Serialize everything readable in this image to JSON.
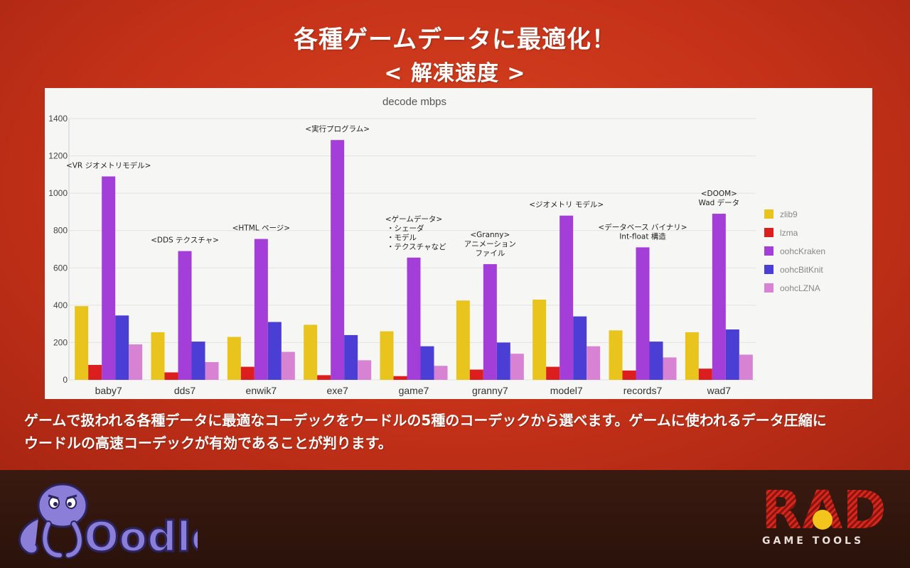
{
  "slide": {
    "title": "各種ゲームデータに最適化！",
    "subtitle": "< 解凍速度 >",
    "caption_line1": "ゲームで扱われる各種データに最適なコーデックをウードルの5種のコーデックから選べます。ゲームに使われるデータ圧縮に",
    "caption_line2": "ウードルの高速コーデックが有効であることが判ります。",
    "brand_left": "Oodle",
    "brand_right": "RAD",
    "brand_right_sub": "GAME TOOLS"
  },
  "colors": {
    "zlib9": "#e8c41c",
    "lzma": "#dc1e1e",
    "oohcKraken": "#a43ed8",
    "oohcBitKnit": "#4a3ed4",
    "oohcLZNA": "#d882d4"
  },
  "chart_data": {
    "type": "bar",
    "title": "decode mbps",
    "xlabel": "",
    "ylabel": "",
    "ylim": [
      0,
      1400
    ],
    "yticks": [
      0,
      200,
      400,
      600,
      800,
      1000,
      1200,
      1400
    ],
    "grid": true,
    "legend": "right",
    "categories": [
      "baby7",
      "dds7",
      "enwik7",
      "exe7",
      "game7",
      "granny7",
      "model7",
      "records7",
      "wad7"
    ],
    "series": [
      {
        "name": "zlib9",
        "values": [
          395,
          255,
          230,
          295,
          260,
          425,
          430,
          265,
          255
        ]
      },
      {
        "name": "lzma",
        "values": [
          80,
          40,
          70,
          25,
          20,
          55,
          70,
          50,
          60
        ]
      },
      {
        "name": "oohcKraken",
        "values": [
          1090,
          690,
          755,
          1285,
          655,
          620,
          880,
          710,
          890
        ]
      },
      {
        "name": "oohcBitKnit",
        "values": [
          345,
          205,
          310,
          240,
          180,
          200,
          340,
          205,
          270
        ]
      },
      {
        "name": "oohcLZNA",
        "values": [
          190,
          95,
          150,
          105,
          75,
          140,
          180,
          120,
          135
        ]
      }
    ],
    "annotations": [
      {
        "category": "baby7",
        "lines": [
          "<VR ジオメトリモデル>"
        ]
      },
      {
        "category": "dds7",
        "lines": [
          "<DDS テクスチャ>"
        ]
      },
      {
        "category": "enwik7",
        "lines": [
          "<HTML ページ>"
        ]
      },
      {
        "category": "exe7",
        "lines": [
          "<実行プログラム>"
        ]
      },
      {
        "category": "game7",
        "lines": [
          "<ゲームデータ>",
          "・シェーダ",
          "・モデル",
          "・テクスチャなど"
        ]
      },
      {
        "category": "granny7",
        "lines": [
          "<Granny>",
          "アニメーション",
          "ファイル"
        ]
      },
      {
        "category": "model7",
        "lines": [
          "<ジオメトリ モデル>"
        ]
      },
      {
        "category": "records7",
        "lines": [
          "<データベース バイナリ>",
          "Int-float 構造"
        ]
      },
      {
        "category": "wad7",
        "lines": [
          "<DOOM>",
          "Wad データ"
        ]
      }
    ]
  }
}
